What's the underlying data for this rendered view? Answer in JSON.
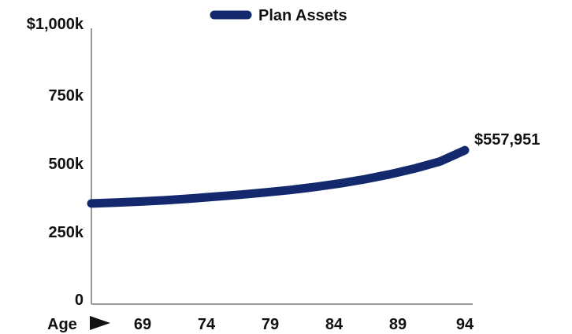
{
  "chart_data": {
    "type": "line",
    "legend": {
      "label": "Plan Assets",
      "placement": "top-center"
    },
    "x_prefix_label": "Age",
    "x_ticks": [
      "69",
      "74",
      "79",
      "84",
      "89",
      "94"
    ],
    "y_ticks": [
      "0",
      "250k",
      "500k",
      "750k",
      "$1,000k"
    ],
    "y_tick_values": [
      0,
      250000,
      500000,
      750000,
      1000000
    ],
    "ylim": [
      0,
      1000000
    ],
    "xlim": [
      64,
      94
    ],
    "grid": false,
    "end_label": "$557,951",
    "series": [
      {
        "name": "Plan Assets",
        "color": "#14286e",
        "x": [
          64,
          66,
          68,
          70,
          72,
          74,
          76,
          78,
          80,
          82,
          84,
          86,
          88,
          90,
          92,
          94
        ],
        "values": [
          365000,
          368000,
          372000,
          377000,
          383000,
          390000,
          397000,
          405000,
          414000,
          425000,
          438000,
          453000,
          471000,
          492000,
          517000,
          557951
        ]
      }
    ]
  }
}
